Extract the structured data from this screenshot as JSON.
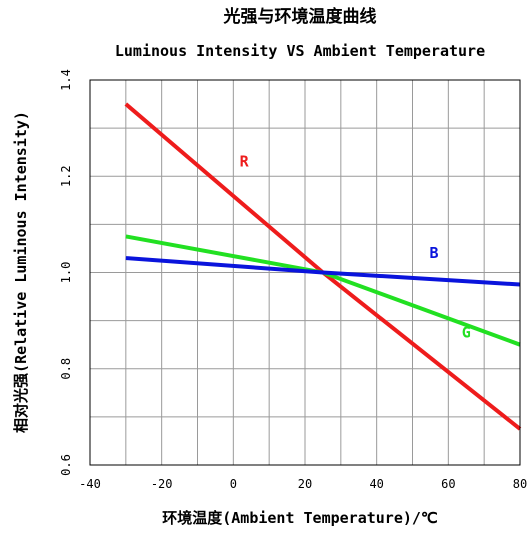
{
  "chart_data": {
    "type": "line",
    "title": "光强与环境温度曲线",
    "subtitle": "Luminous Intensity VS Ambient Temperature",
    "xlabel": "环境温度(Ambient Temperature)/℃",
    "ylabel": "相对光强(Relative Luminous Intensity)",
    "xlim": [
      -40,
      80
    ],
    "ylim": [
      0.6,
      1.4
    ],
    "x_ticks": [
      "-40",
      "-20",
      "0",
      "20",
      "40",
      "60",
      "80"
    ],
    "y_ticks": [
      "0.6",
      "0.8",
      "1.0",
      "1.2",
      "1.4"
    ],
    "grid": true,
    "series": [
      {
        "name": "R",
        "color": "#ee1c1c",
        "x": [
          -30,
          25,
          80
        ],
        "values": [
          1.35,
          1.0,
          0.675
        ],
        "label_at": [
          3,
          1.22
        ]
      },
      {
        "name": "G",
        "color": "#22e022",
        "x": [
          -30,
          25,
          80
        ],
        "values": [
          1.075,
          1.0,
          0.85
        ],
        "label_at": [
          65,
          0.865
        ]
      },
      {
        "name": "B",
        "color": "#0a14dc",
        "x": [
          -30,
          25,
          80
        ],
        "values": [
          1.03,
          1.0,
          0.975
        ],
        "label_at": [
          56,
          1.03
        ]
      }
    ]
  }
}
